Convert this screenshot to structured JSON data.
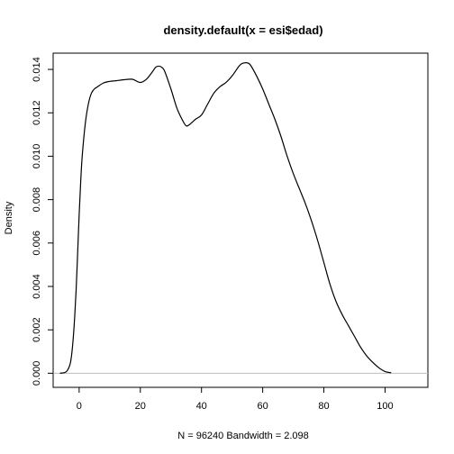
{
  "chart_data": {
    "type": "line",
    "title": "density.default(x = esi$edad)",
    "xlabel": "N = 96240   Bandwidth = 2.098",
    "ylabel": "Density",
    "xlim": [
      -8.5,
      114
    ],
    "ylim": [
      -0.00065,
      0.01475
    ],
    "xticks": [
      0,
      20,
      40,
      60,
      80,
      100
    ],
    "xtick_labels": [
      "0",
      "20",
      "40",
      "60",
      "80",
      "100"
    ],
    "yticks": [
      0,
      0.002,
      0.004,
      0.006,
      0.008,
      0.01,
      0.012,
      0.014
    ],
    "ytick_labels": [
      "0.000",
      "0.002",
      "0.004",
      "0.006",
      "0.008",
      "0.010",
      "0.012",
      "0.014"
    ],
    "zero_line_color": "#bebebe",
    "line_color": "#000000",
    "series": [
      {
        "x": [
          -6.3,
          -5,
          -4,
          -3,
          -2.5,
          -2,
          -1.5,
          -1,
          -0.5,
          0,
          0.5,
          1,
          2,
          3,
          4,
          5,
          6,
          8,
          10,
          12,
          15,
          17,
          18,
          20,
          22,
          24,
          25,
          26,
          27,
          28,
          30,
          32,
          34,
          35,
          36,
          38,
          40,
          42,
          44,
          46,
          48,
          50,
          52,
          53,
          54,
          55,
          56,
          58,
          60,
          62,
          64,
          66,
          68,
          70,
          72,
          74,
          76,
          78,
          80,
          82,
          84,
          86,
          88,
          90,
          92,
          94,
          96,
          98,
          100,
          102
        ],
        "y": [
          0.0,
          2e-05,
          0.0001,
          0.0004,
          0.0008,
          0.0015,
          0.0025,
          0.0038,
          0.0055,
          0.0073,
          0.0088,
          0.01,
          0.0115,
          0.0124,
          0.0129,
          0.0131,
          0.0132,
          0.01338,
          0.01345,
          0.01348,
          0.01353,
          0.01355,
          0.01352,
          0.0134,
          0.01355,
          0.0139,
          0.0141,
          0.01415,
          0.0141,
          0.0139,
          0.0131,
          0.0122,
          0.0116,
          0.0114,
          0.01145,
          0.0117,
          0.0119,
          0.0124,
          0.0129,
          0.0132,
          0.0134,
          0.0137,
          0.0141,
          0.01425,
          0.0143,
          0.0143,
          0.0142,
          0.0137,
          0.0131,
          0.0124,
          0.0117,
          0.0109,
          0.01,
          0.0092,
          0.0085,
          0.0078,
          0.007,
          0.0061,
          0.0051,
          0.0041,
          0.0033,
          0.0027,
          0.0022,
          0.0017,
          0.0012,
          0.0008,
          0.0005,
          0.00025,
          8e-05,
          2e-05
        ]
      }
    ]
  }
}
